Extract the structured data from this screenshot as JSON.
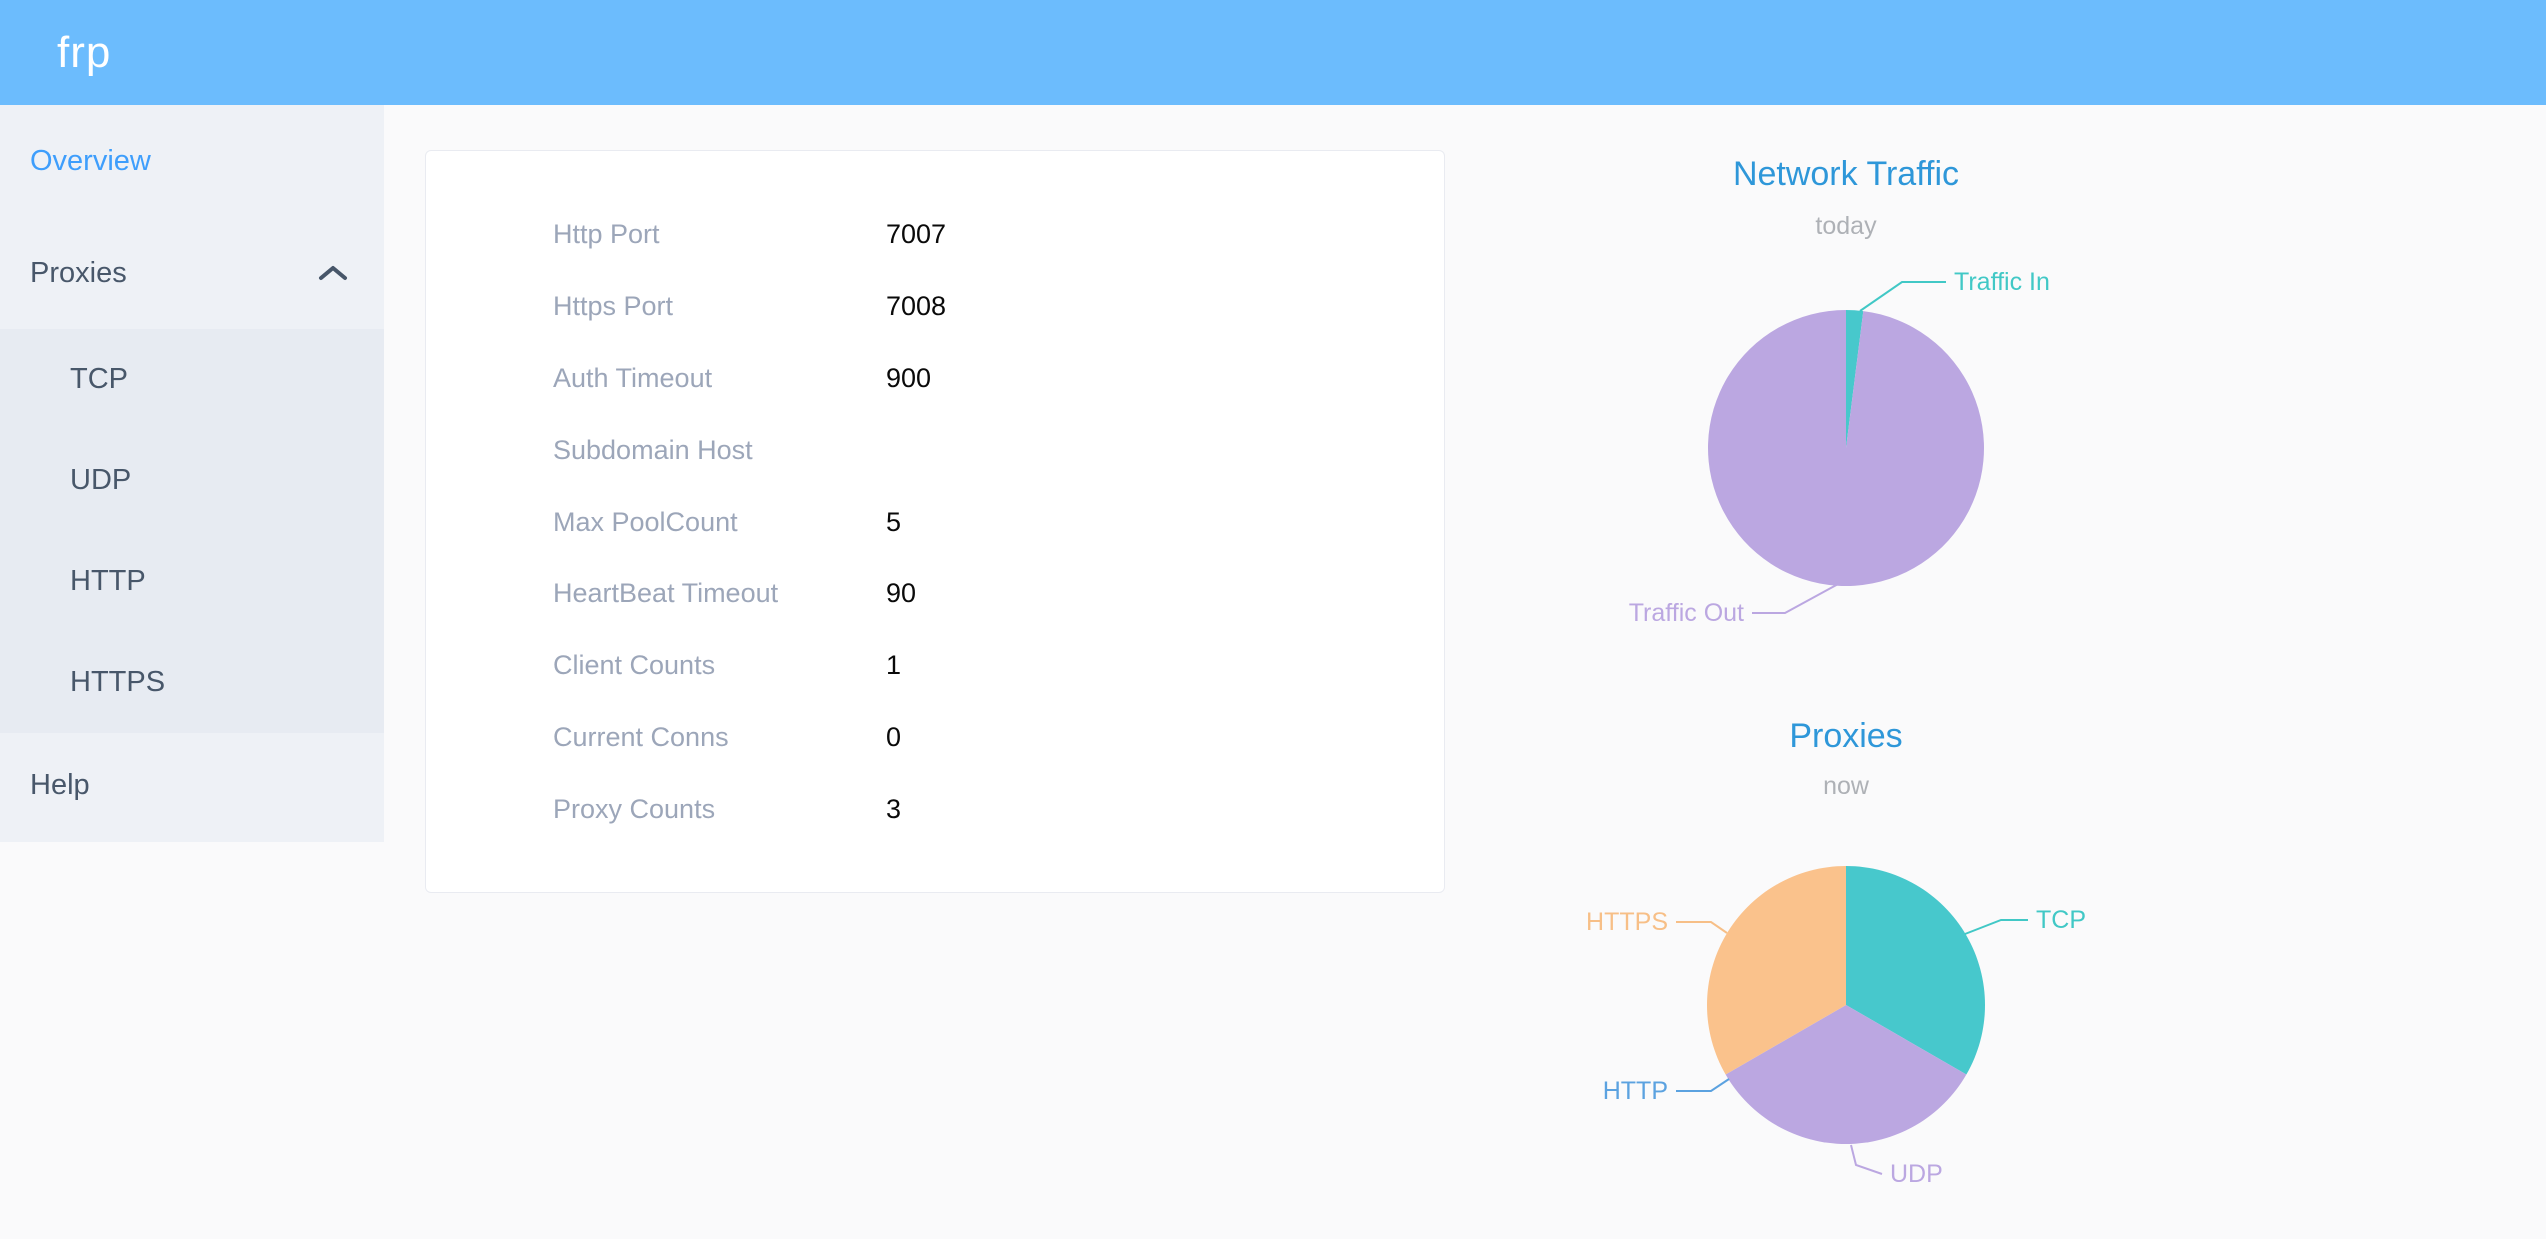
{
  "header": {
    "logo": "frp"
  },
  "sidebar": {
    "overview": "Overview",
    "proxies": "Proxies",
    "children": [
      "TCP",
      "UDP",
      "HTTP",
      "HTTPS"
    ],
    "help": "Help"
  },
  "card": {
    "rows": [
      {
        "label": "Http Port",
        "value": "7007"
      },
      {
        "label": "Https Port",
        "value": "7008"
      },
      {
        "label": "Auth Timeout",
        "value": "900"
      },
      {
        "label": "Subdomain Host",
        "value": ""
      },
      {
        "label": "Max PoolCount",
        "value": "5"
      },
      {
        "label": "HeartBeat Timeout",
        "value": "90"
      },
      {
        "label": "Client Counts",
        "value": "1"
      },
      {
        "label": "Current Conns",
        "value": "0"
      },
      {
        "label": "Proxy Counts",
        "value": "3"
      }
    ]
  },
  "chart_data": [
    {
      "type": "pie",
      "title": "Network Traffic",
      "subtitle": "today",
      "legend_position": "outside-leader-lines",
      "series": [
        {
          "name": "Traffic In",
          "value": 2,
          "color": "#47C8CC"
        },
        {
          "name": "Traffic Out",
          "value": 98,
          "color": "#BBA7E1"
        }
      ]
    },
    {
      "type": "pie",
      "title": "Proxies",
      "subtitle": "now",
      "legend_position": "outside-leader-lines",
      "series": [
        {
          "name": "TCP",
          "value": 1,
          "color": "#47C8CC"
        },
        {
          "name": "UDP",
          "value": 1,
          "color": "#BBA7E1"
        },
        {
          "name": "HTTP",
          "value": 0,
          "color": "#5BA2E0"
        },
        {
          "name": "HTTPS",
          "value": 1,
          "color": "#FAC28C"
        }
      ]
    }
  ],
  "colors": {
    "header_bg": "#6CBCFD",
    "sidebar_bg": "#EEF1F6",
    "submenu_bg": "#E7EBF2",
    "active_link": "#3E9EFC",
    "menu_text": "#48576A",
    "chart_title": "#2E97D9",
    "card_label": "#9CA6B9",
    "teal": "#47C8CC",
    "purple": "#BBA7E1",
    "orange": "#FAC28C",
    "http_blue": "#5BA2E0"
  }
}
